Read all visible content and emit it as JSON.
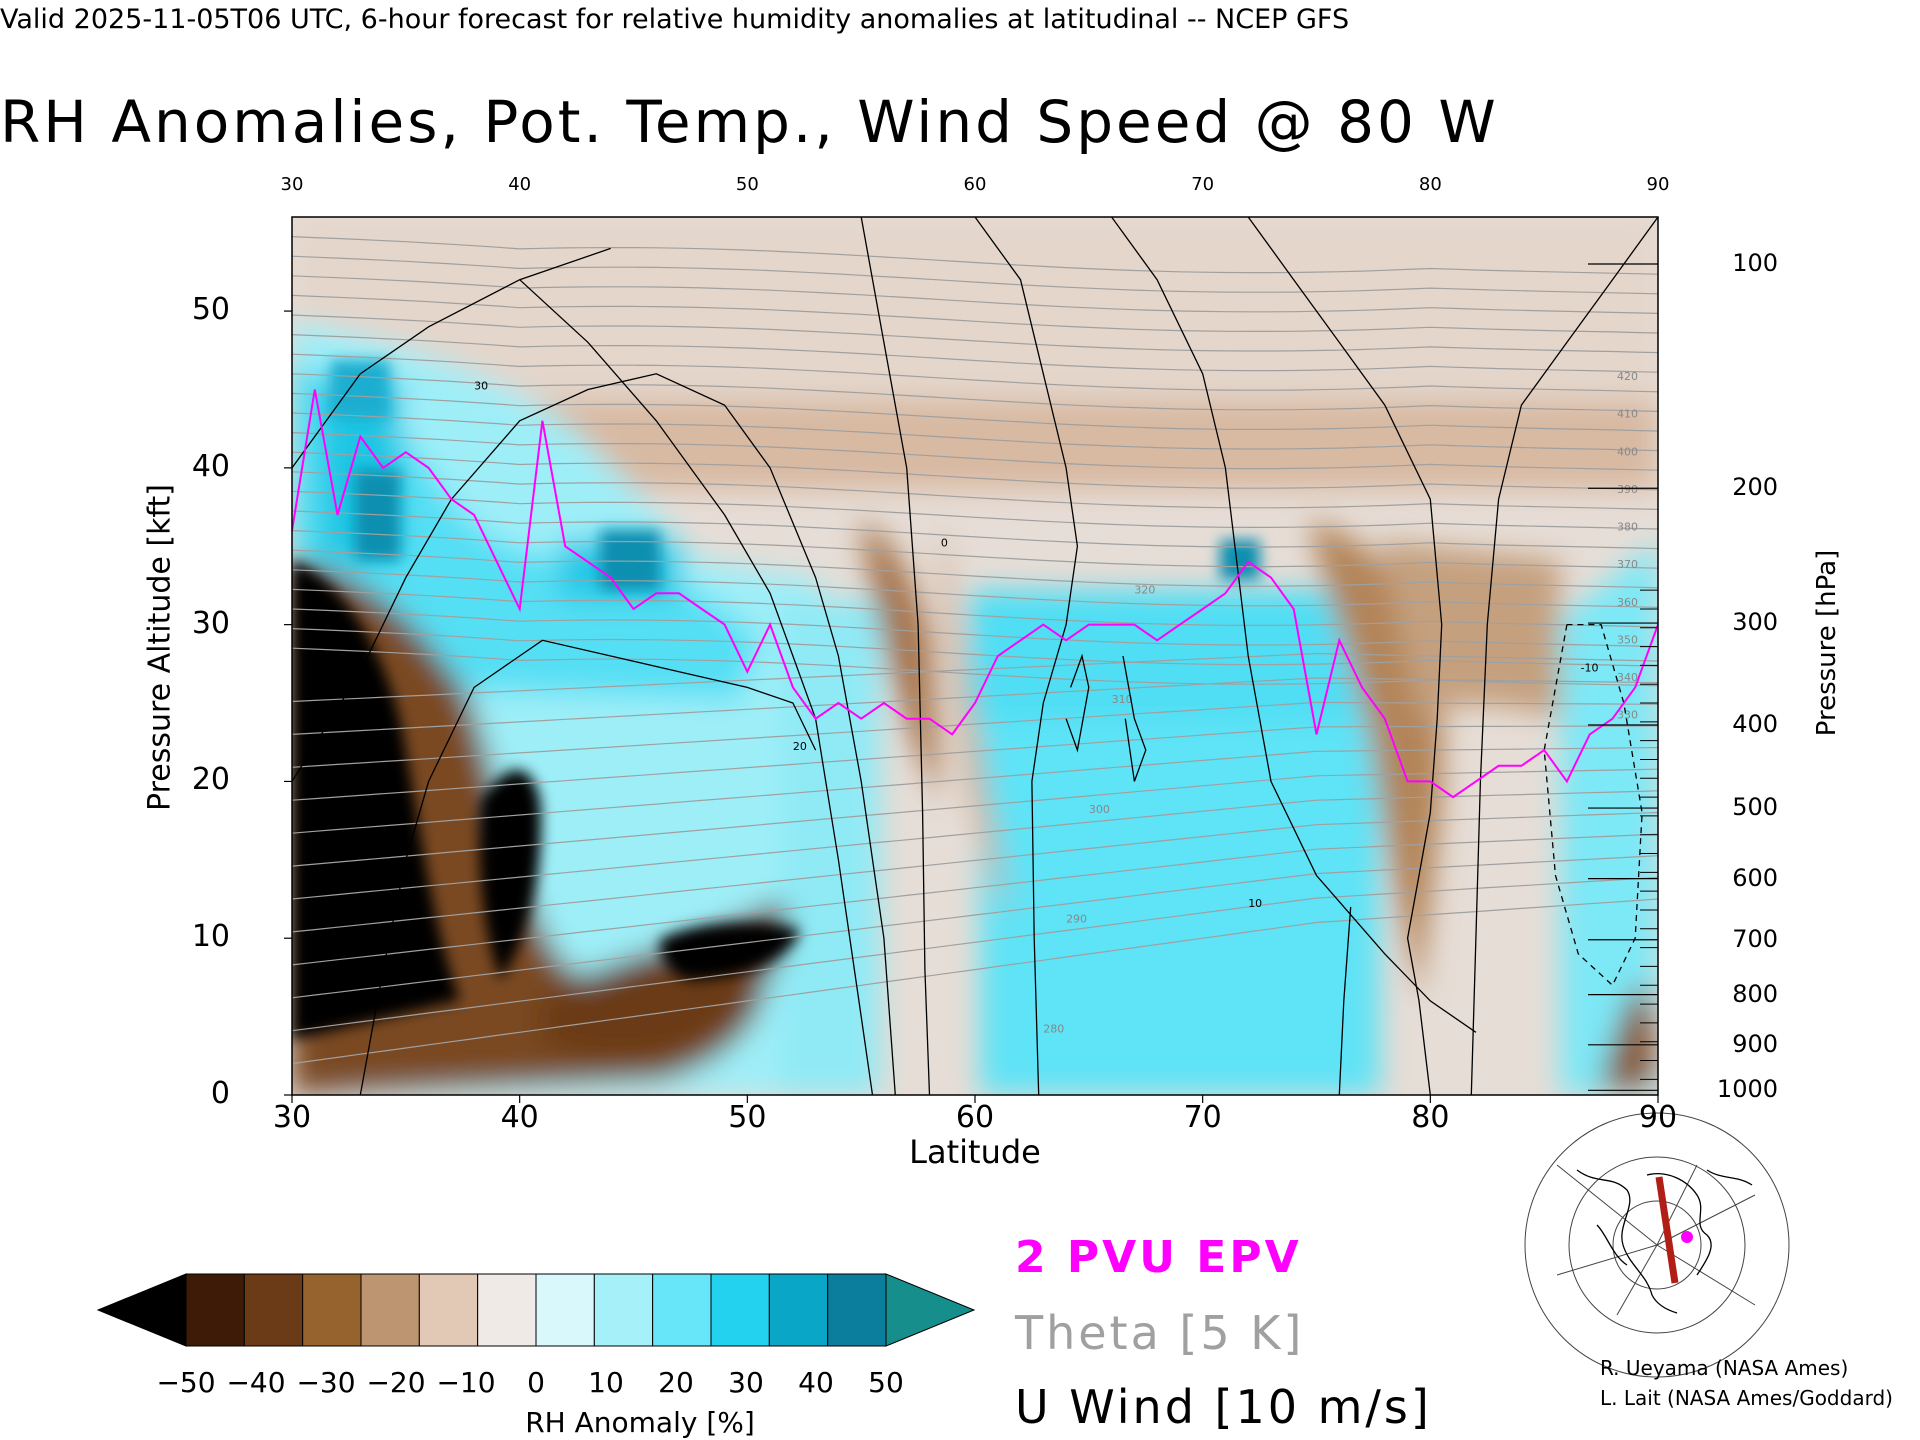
{
  "header": "Valid 2025-11-05T06 UTC, 6-hour forecast for relative humidity anomalies at latitudinal -- NCEP GFS",
  "title": "RH Anomalies, Pot. Temp., Wind Speed @ 80 W",
  "chart_data": {
    "type": "heatmap",
    "title": "RH Anomalies, Pot. Temp., Wind Speed @ 80 W",
    "xlabel": "Latitude",
    "ylabel": "Pressure Altitude [kft]",
    "y2label": "Pressure [hPa]",
    "xlim": [
      30,
      90
    ],
    "ylim": [
      0,
      56
    ],
    "x_ticks": [
      30,
      40,
      50,
      60,
      70,
      80,
      90
    ],
    "x_ticks_top": [
      30,
      40,
      50,
      60,
      70,
      80,
      90
    ],
    "y_ticks": [
      0,
      10,
      20,
      30,
      40,
      50
    ],
    "pressure_ticks": [
      {
        "label": "100",
        "kft": 53.0
      },
      {
        "label": "200",
        "kft": 38.7
      },
      {
        "label": "300",
        "kft": 30.1
      },
      {
        "label": "400",
        "kft": 23.6
      },
      {
        "label": "500",
        "kft": 18.3
      },
      {
        "label": "600",
        "kft": 13.8
      },
      {
        "label": "700",
        "kft": 9.9
      },
      {
        "label": "800",
        "kft": 6.4
      },
      {
        "label": "900",
        "kft": 3.2
      },
      {
        "label": "1000",
        "kft": 0.3
      }
    ],
    "colorbar": {
      "label": "RH Anomaly [%]",
      "ticks": [
        -50,
        -40,
        -30,
        -20,
        -10,
        0,
        10,
        20,
        30,
        40,
        50
      ],
      "tick_labels": [
        "-50",
        "-40",
        "-30",
        "-20",
        "-10",
        "0",
        "10",
        "20",
        "30",
        "40",
        "50"
      ],
      "colors": [
        "#000000",
        "#3d1b07",
        "#6b3a16",
        "#96632f",
        "#bd9570",
        "#e2c9b5",
        "#f0eae6",
        "#d8f8fc",
        "#a6f0fa",
        "#66e6f8",
        "#22d2ee",
        "#0aa6c8",
        "#0a7e9c",
        "#168e8c"
      ]
    },
    "epv_2pvu": {
      "lat": [
        30,
        31,
        32,
        33,
        34,
        35,
        36,
        37,
        38,
        39,
        40,
        41,
        42,
        43,
        44,
        45,
        46,
        47,
        48,
        49,
        50,
        51,
        52,
        53,
        54,
        55,
        56,
        57,
        58,
        59,
        60,
        61,
        62,
        63,
        64,
        65,
        66,
        67,
        68,
        69,
        70,
        71,
        72,
        73,
        74,
        75,
        76,
        77,
        78,
        79,
        80,
        81,
        82,
        83,
        84,
        85,
        86,
        87,
        88,
        89,
        90
      ],
      "kft": [
        36,
        45,
        37,
        42,
        40,
        41,
        40,
        38,
        37,
        34,
        31,
        43,
        35,
        34,
        33,
        31,
        32,
        32,
        31,
        30,
        27,
        30,
        26,
        24,
        25,
        24,
        25,
        24,
        24,
        23,
        25,
        28,
        29,
        30,
        29,
        30,
        30,
        30,
        29,
        30,
        31,
        32,
        34,
        33,
        31,
        23,
        29,
        26,
        24,
        20,
        20,
        19,
        20,
        21,
        21,
        22,
        20,
        23,
        24,
        26,
        30
      ]
    },
    "theta_interval_K": 5,
    "theta_labels": [
      280,
      290,
      300,
      310,
      320,
      330,
      340,
      350,
      360,
      370,
      380,
      390,
      400,
      410,
      420
    ],
    "u_wind_interval_ms": 10,
    "u_wind_labels": [
      -10,
      0,
      10,
      20,
      30
    ]
  },
  "legend": {
    "epv": "2 PVU EPV",
    "theta": "Theta [5 K]",
    "wind": "U Wind [10 m/s]"
  },
  "credits": [
    "R. Ueyama (NASA Ames)",
    "L. Lait (NASA Ames/Goddard)"
  ],
  "colors": {
    "epv": "#ff00ff",
    "theta": "#a0a0a0",
    "wind": "#000000",
    "section_line": "#b01e16",
    "location_marker": "#ff00ff"
  }
}
